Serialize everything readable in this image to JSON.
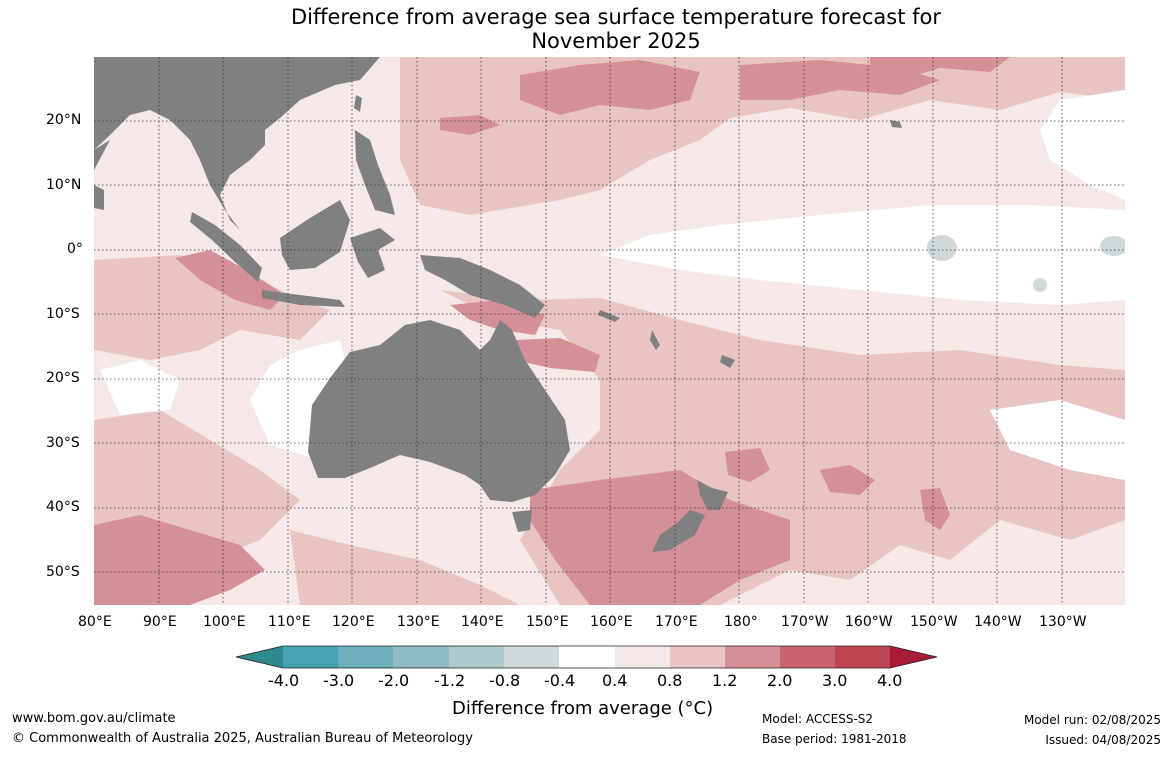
{
  "title": {
    "line1": "Difference from average sea surface temperature forecast for",
    "line2": "November 2025"
  },
  "map": {
    "lat_labels": [
      "20°N",
      "10°N",
      "0°",
      "10°S",
      "20°S",
      "30°S",
      "40°S",
      "50°S"
    ],
    "lon_labels": [
      "80°E",
      "90°E",
      "100°E",
      "110°E",
      "120°E",
      "130°E",
      "140°E",
      "150°E",
      "160°E",
      "170°E",
      "180°",
      "170°W",
      "160°W",
      "150°W",
      "140°W",
      "130°W"
    ],
    "land_color": "#808080",
    "ocean_mask_color": "#ffffff"
  },
  "colorbar": {
    "title": "Difference from average (°C)",
    "tick_labels": [
      "-4.0",
      "-3.0",
      "-2.0",
      "-1.2",
      "-0.8",
      "-0.4",
      "0.4",
      "0.8",
      "1.2",
      "2.0",
      "3.0",
      "4.0"
    ],
    "colors": [
      "#2e8a8e",
      "#46a3b2",
      "#6dafbb",
      "#8fbcc3",
      "#aec9cb",
      "#cfd9d9",
      "#ffffff",
      "#f5e8e7",
      "#e8c5c2",
      "#d58f97",
      "#c8646f",
      "#bd4450",
      "#a81d35"
    ]
  },
  "footer": {
    "website": "www.bom.gov.au/climate",
    "copyright": "© Commonwealth of Australia 2025, Australian Bureau of Meteorology",
    "model": "Model: ACCESS-S2",
    "base_period": "Base period: 1981-2018",
    "model_run": "Model run: 02/08/2025",
    "issued": "Issued: 04/08/2025"
  }
}
